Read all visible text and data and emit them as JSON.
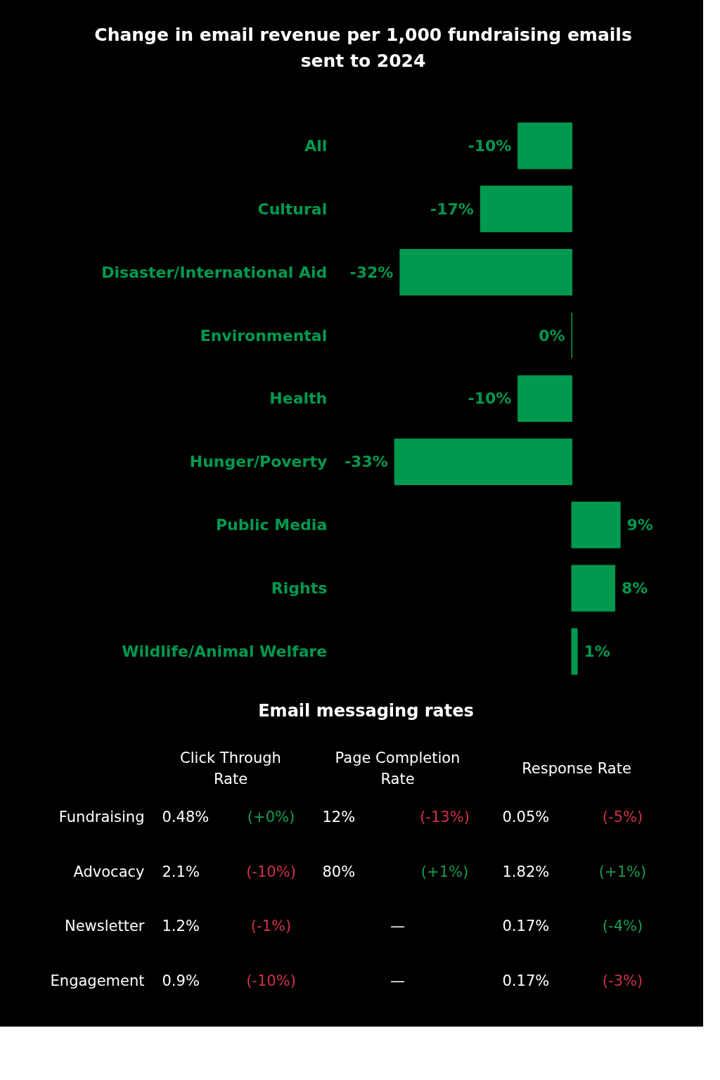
{
  "chart_data": [
    {
      "type": "bar",
      "orientation": "horizontal",
      "title": "Change in email revenue per 1,000 fundraising emails sent to 2024",
      "categories": [
        "All",
        "Cultural",
        "Disaster/International Aid",
        "Environmental",
        "Health",
        "Hunger/Poverty",
        "Public Media",
        "Rights",
        "Wildlife/Animal Welfare"
      ],
      "values": [
        -10,
        -17,
        -32,
        0,
        -10,
        -33,
        9,
        8,
        1
      ],
      "value_labels": [
        "-10%",
        "-17%",
        "-32%",
        "0%",
        "-10%",
        "-33%",
        "9%",
        "8%",
        "1%"
      ],
      "color": "#00994f",
      "grid": false
    },
    {
      "type": "other",
      "title": "Email messaging rates",
      "categories": [
        "Click Through Rate",
        null,
        "Page Completion Rate",
        null,
        "Response Rate",
        null
      ],
      "y_categories": [
        "Fundraising",
        "Advocacy",
        "Newsletter",
        "Engagement"
      ],
      "cell_labels": [
        [
          "0.48%",
          "(+0%)",
          "12%",
          "(-13%)",
          "0.05%",
          "(-5%)"
        ],
        [
          "2.1%",
          "(-10%)",
          "80%",
          "(+1%)",
          "1.82%",
          "(+1%)"
        ],
        [
          "1.2%",
          "(-1%)",
          "—",
          null,
          "0.17%",
          "(-4%)"
        ],
        [
          "0.9%",
          "(-10%)",
          "—",
          null,
          "0.17%",
          "(-3%)"
        ]
      ],
      "colors": [
        [
          "#ffffff",
          "#1a9a50",
          "#ffffff",
          "#d0304a",
          "#ffffff",
          "#d0304a"
        ],
        [
          "#ffffff",
          "#d0304a",
          "#ffffff",
          "#1a9a50",
          "#ffffff",
          "#1a9a50"
        ],
        [
          "#ffffff",
          "#d0304a",
          "#ffffff",
          null,
          "#ffffff",
          "#1a9a50"
        ],
        [
          "#ffffff",
          "#d0304a",
          "#ffffff",
          null,
          "#ffffff",
          "#d0304a"
        ]
      ]
    }
  ]
}
